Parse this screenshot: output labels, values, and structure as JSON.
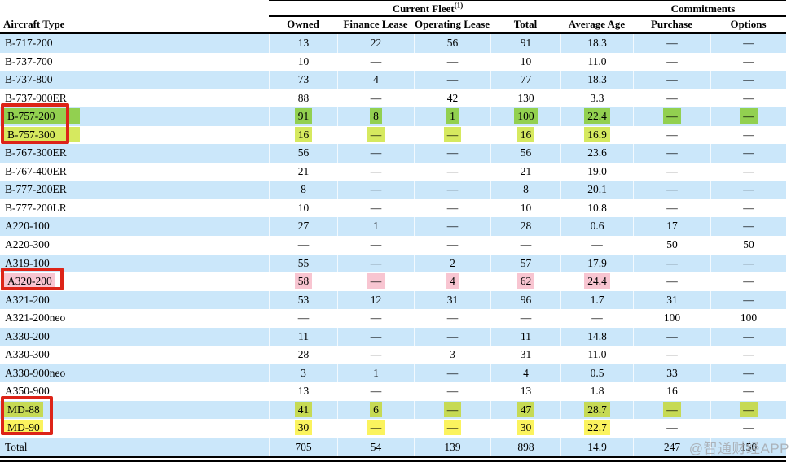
{
  "colors": {
    "row_blue": "#cbe7fa",
    "highlight_green": "#92d050",
    "highlight_yellow_green": "#d6e95f",
    "highlight_olive": "#c6da54",
    "highlight_yellow": "#fbf35e",
    "highlight_pink": "#f8c5d1",
    "red_box": "#dd2418",
    "watermark_grey": "#a8adb3"
  },
  "table": {
    "group_headers": {
      "fleet": {
        "label": "Current Fleet",
        "superscript": "(1)"
      },
      "commitments": {
        "label": "Commitments"
      }
    },
    "columns": [
      "Aircraft Type",
      "Owned",
      "Finance Lease",
      "Operating Lease",
      "Total",
      "Average Age",
      "Purchase",
      "Options"
    ],
    "rows": [
      {
        "cells": [
          "B-717-200",
          "13",
          "22",
          "56",
          "91",
          "18.3",
          "—",
          "—"
        ]
      },
      {
        "cells": [
          "B-737-700",
          "10",
          "—",
          "—",
          "10",
          "11.0",
          "—",
          "—"
        ]
      },
      {
        "cells": [
          "B-737-800",
          "73",
          "4",
          "—",
          "77",
          "18.3",
          "—",
          "—"
        ]
      },
      {
        "cells": [
          "B-737-900ER",
          "88",
          "—",
          "42",
          "130",
          "3.3",
          "—",
          "—"
        ]
      },
      {
        "cells": [
          "B-757-200",
          "91",
          "8",
          "1",
          "100",
          "22.4",
          "—",
          "—"
        ],
        "highlight": {
          "color": "#92d050",
          "cells": [
            0,
            1,
            2,
            3,
            4,
            5,
            6,
            7
          ],
          "wide_name_highlight": true
        }
      },
      {
        "cells": [
          "B-757-300",
          "16",
          "—",
          "—",
          "16",
          "16.9",
          "—",
          "—"
        ],
        "highlight": {
          "color": "#d6e95f",
          "cells": [
            0,
            1,
            2,
            3,
            4,
            5
          ],
          "wide_name_highlight": true
        }
      },
      {
        "cells": [
          "B-767-300ER",
          "56",
          "—",
          "—",
          "56",
          "23.6",
          "—",
          "—"
        ]
      },
      {
        "cells": [
          "B-767-400ER",
          "21",
          "—",
          "—",
          "21",
          "19.0",
          "—",
          "—"
        ]
      },
      {
        "cells": [
          "B-777-200ER",
          "8",
          "—",
          "—",
          "8",
          "20.1",
          "—",
          "—"
        ]
      },
      {
        "cells": [
          "B-777-200LR",
          "10",
          "—",
          "—",
          "10",
          "10.8",
          "—",
          "—"
        ]
      },
      {
        "cells": [
          "A220-100",
          "27",
          "1",
          "—",
          "28",
          "0.6",
          "17",
          "—"
        ]
      },
      {
        "cells": [
          "A220-300",
          "—",
          "—",
          "—",
          "—",
          "—",
          "50",
          "50"
        ]
      },
      {
        "cells": [
          "A319-100",
          "55",
          "—",
          "2",
          "57",
          "17.9",
          "—",
          "—"
        ]
      },
      {
        "cells": [
          "A320-200",
          "58",
          "—",
          "4",
          "62",
          "24.4",
          "—",
          "—"
        ],
        "highlight": {
          "color": "#f8c5d1",
          "cells": [
            0,
            1,
            2,
            3,
            4,
            5
          ]
        }
      },
      {
        "cells": [
          "A321-200",
          "53",
          "12",
          "31",
          "96",
          "1.7",
          "31",
          "—"
        ]
      },
      {
        "cells": [
          "A321-200neo",
          "—",
          "—",
          "—",
          "—",
          "—",
          "100",
          "100"
        ]
      },
      {
        "cells": [
          "A330-200",
          "11",
          "—",
          "—",
          "11",
          "14.8",
          "—",
          "—"
        ]
      },
      {
        "cells": [
          "A330-300",
          "28",
          "—",
          "3",
          "31",
          "11.0",
          "—",
          "—"
        ]
      },
      {
        "cells": [
          "A330-900neo",
          "3",
          "1",
          "—",
          "4",
          "0.5",
          "33",
          "—"
        ]
      },
      {
        "cells": [
          "A350-900",
          "13",
          "—",
          "—",
          "13",
          "1.8",
          "16",
          "—"
        ]
      },
      {
        "cells": [
          "MD-88",
          "41",
          "6",
          "—",
          "47",
          "28.7",
          "—",
          "—"
        ],
        "highlight": {
          "color": "#c6da54",
          "cells": [
            0,
            1,
            2,
            3,
            4,
            5,
            6,
            7
          ]
        }
      },
      {
        "cells": [
          "MD-90",
          "30",
          "—",
          "—",
          "30",
          "22.7",
          "—",
          "—"
        ],
        "highlight": {
          "color": "#fbf35e",
          "cells": [
            0,
            1,
            2,
            3,
            4,
            5
          ]
        }
      }
    ],
    "total_row": {
      "cells": [
        "Total",
        "705",
        "54",
        "139",
        "898",
        "14.9",
        "247",
        "150"
      ]
    }
  },
  "annotations": {
    "red_boxes": [
      "B-757-200 / B-757-300",
      "A320-200",
      "MD-88 / MD-90"
    ]
  },
  "watermark": {
    "text": "@智通财经APP"
  }
}
